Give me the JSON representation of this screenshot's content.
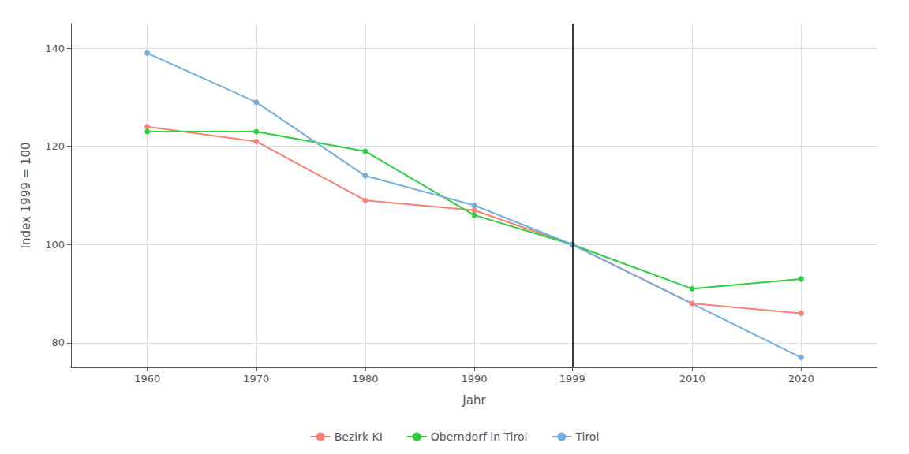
{
  "chart_data": {
    "type": "line",
    "xlabel": "Jahr",
    "ylabel": "Index 1999 = 100",
    "series": [
      {
        "name": "Bezirk KI",
        "color": "#FA8072",
        "marker": "circle",
        "x": [
          1960,
          1970,
          1980,
          1990,
          1999,
          2010,
          2020
        ],
        "values": [
          124,
          121,
          109,
          107,
          100,
          88,
          86
        ]
      },
      {
        "name": "Oberndorf in Tirol",
        "color": "#2ECC40",
        "marker": "circle",
        "x": [
          1960,
          1970,
          1980,
          1990,
          1999,
          2010,
          2020
        ],
        "values": [
          123,
          123,
          119,
          106,
          100,
          91,
          93
        ]
      },
      {
        "name": "Tirol",
        "color": "#74ADDE",
        "marker": "circle",
        "x": [
          1960,
          1970,
          1980,
          1990,
          1999,
          2020
        ],
        "values": [
          139,
          129,
          114,
          108,
          100,
          77
        ]
      }
    ],
    "vline": 1999,
    "xlim": [
      1953,
      2027
    ],
    "xticks": [
      1960,
      1970,
      1980,
      1990,
      1999,
      2010,
      2020
    ],
    "ylim": [
      75,
      145
    ],
    "yticks": [
      80,
      100,
      120,
      140
    ],
    "grid": true,
    "legend": "bottom"
  }
}
